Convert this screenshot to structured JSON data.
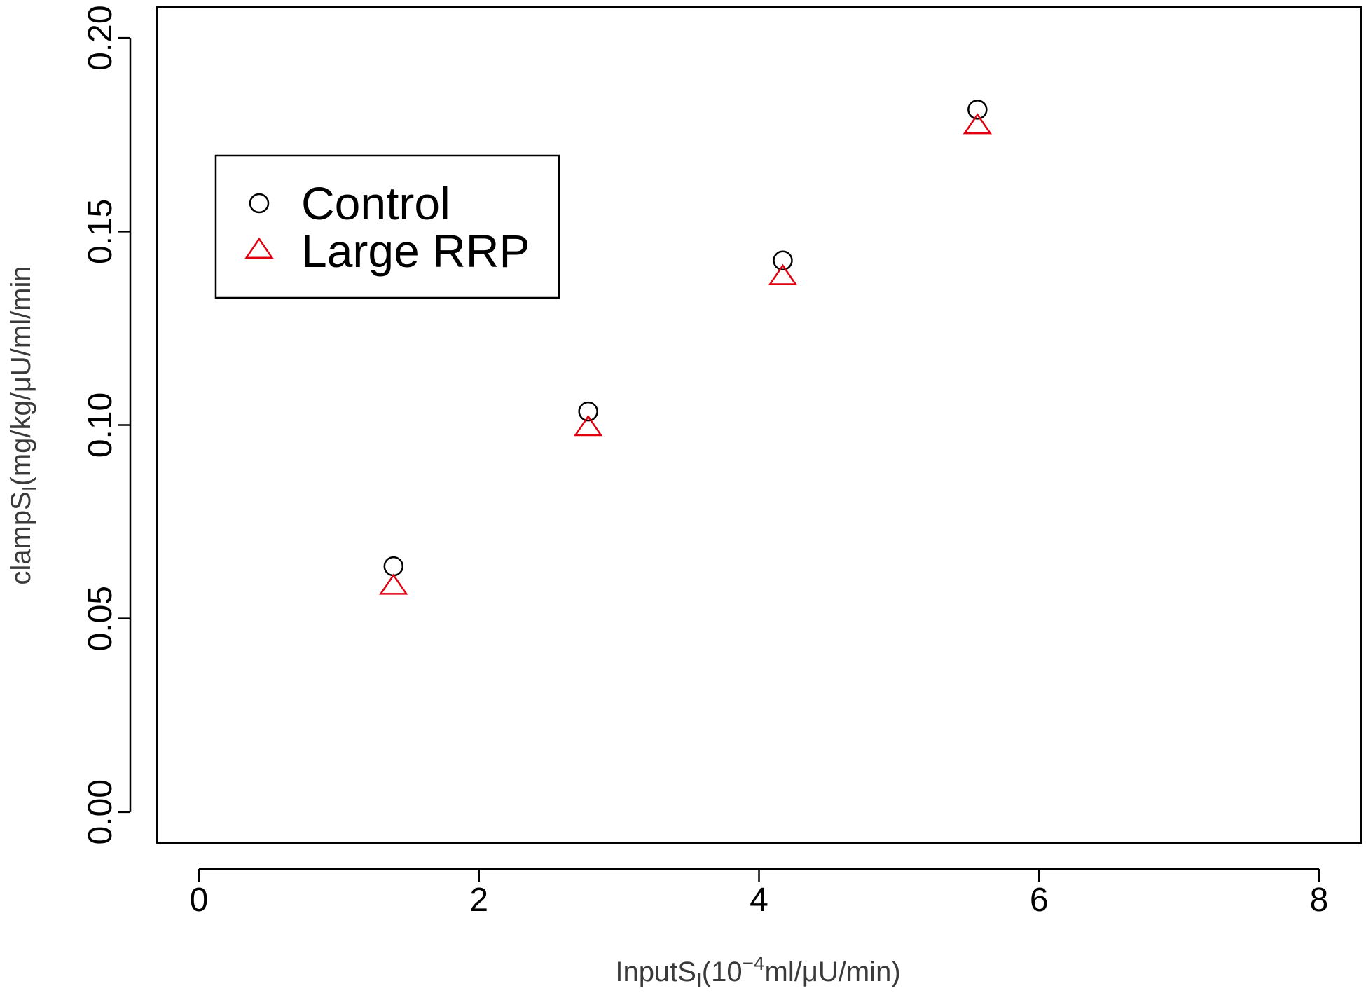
{
  "chart_data": {
    "type": "scatter",
    "title": "",
    "xlabel": {
      "main": "InputS",
      "sub": "I",
      "rest_before_sup": "(10",
      "sup": "−4",
      "rest_after_sup": "ml/μU/min)"
    },
    "ylabel": {
      "main": "clampS",
      "sub": "I",
      "rest": "(mg/kg/μU/ml/min"
    },
    "xlim": [
      -0.3,
      8.3
    ],
    "ylim": [
      -0.008,
      0.208
    ],
    "xticks": [
      0,
      2,
      4,
      6,
      8
    ],
    "xtick_labels": [
      "0",
      "2",
      "4",
      "6",
      "8"
    ],
    "yticks": [
      0.0,
      0.05,
      0.1,
      0.15,
      0.2
    ],
    "ytick_labels": [
      "0.00",
      "0.05",
      "0.10",
      "0.15",
      "0.20"
    ],
    "grid": false,
    "legend_position": "top-left",
    "series": [
      {
        "name": "Control",
        "marker": "circle",
        "color": "#000000",
        "x": [
          1.39,
          2.78,
          4.17,
          5.56
        ],
        "y": [
          0.0635,
          0.1035,
          0.1425,
          0.1815
        ]
      },
      {
        "name": "Large RRP",
        "marker": "triangle",
        "color": "#e0000e",
        "x": [
          1.39,
          2.78,
          4.17,
          5.56
        ],
        "y": [
          0.0585,
          0.0995,
          0.1385,
          0.1775
        ]
      }
    ]
  }
}
